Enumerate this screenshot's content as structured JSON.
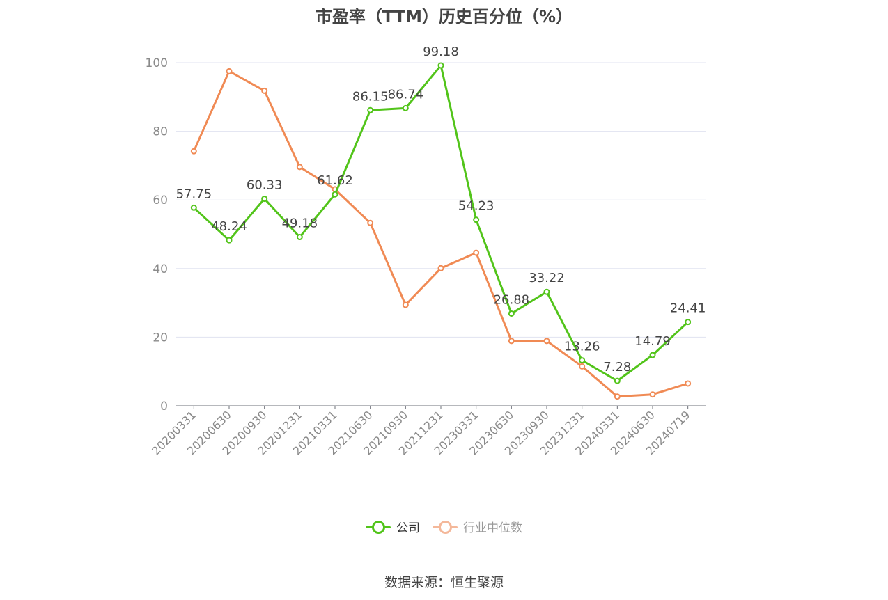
{
  "title": "市盈率（TTM）历史百分位（%）",
  "source": "数据来源：恒生聚源",
  "colors": {
    "company": "#52c41a",
    "industry": "#f08a54",
    "grid": "#e0e3f0",
    "axis_text": "#8a8a8a",
    "label_text": "#444444"
  },
  "legend": [
    {
      "name": "公司",
      "color": "#52c41a",
      "active": true
    },
    {
      "name": "行业中位数",
      "color": "#f4b89a",
      "active": false
    }
  ],
  "chart_data": {
    "type": "line",
    "title": "市盈率（TTM）历史百分位（%）",
    "xlabel": "",
    "ylabel": "",
    "ylim": [
      0,
      100
    ],
    "yticks": [
      0,
      20,
      40,
      60,
      80,
      100
    ],
    "grid": true,
    "legend_position": "bottom",
    "categories": [
      "20200331",
      "20200630",
      "20200930",
      "20201231",
      "20210331",
      "20210630",
      "20210930",
      "20211231",
      "20230331",
      "20230630",
      "20230930",
      "20231231",
      "20240331",
      "20240630",
      "20240719"
    ],
    "series": [
      {
        "name": "公司",
        "values": [
          57.75,
          48.24,
          60.33,
          49.18,
          61.62,
          86.15,
          86.74,
          99.18,
          54.23,
          26.88,
          33.22,
          13.26,
          7.28,
          14.79,
          24.41
        ],
        "labels": [
          "57.75",
          "48.24",
          "60.33",
          "49.18",
          "61.62",
          "86.15",
          "86.74",
          "99.18",
          "54.23",
          "26.88",
          "33.22",
          "13.26",
          "7.28",
          "14.79",
          "24.41"
        ]
      },
      {
        "name": "行业中位数",
        "values": [
          74.2,
          97.5,
          91.8,
          69.6,
          63.1,
          53.3,
          29.4,
          40.1,
          44.6,
          18.9,
          18.9,
          11.5,
          2.7,
          3.3,
          6.5
        ]
      }
    ]
  }
}
